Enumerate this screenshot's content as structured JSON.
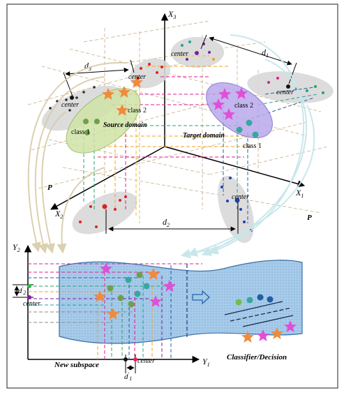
{
  "axes_3d": {
    "x1": "X",
    "x1_sub": "1",
    "x2": "X",
    "x2_sub": "2",
    "x3": "X",
    "x3_sub": "3"
  },
  "axes_2d": {
    "y1": "Y",
    "y1_sub": "1",
    "y2": "Y",
    "y2_sub": "2"
  },
  "labels": {
    "source_domain": "Source domain",
    "target_domain": "Target domain",
    "class1": "class 1",
    "class2": "class 2",
    "center": "center",
    "projection_p": "P",
    "new_subspace": "New subspace",
    "classifier": "Classifier/Decision"
  },
  "distances": {
    "d": "d",
    "d1_sub": "1",
    "d2_sub": "2",
    "d3_sub": "3",
    "prime": "′"
  },
  "colors": {
    "source_ellipse": "#cfe3a6",
    "target_ellipse": "#b9a9ec",
    "gray_ellipse": "#d9d9d9",
    "ribbon": "#9cc3e6",
    "star_orange": "#f08a3c",
    "star_magenta": "#e04fd8",
    "dot_green": "#6f9f4a",
    "dot_teal": "#3aa6a0",
    "dot_blue": "#1f5fa8",
    "dot_red": "#e02020"
  }
}
